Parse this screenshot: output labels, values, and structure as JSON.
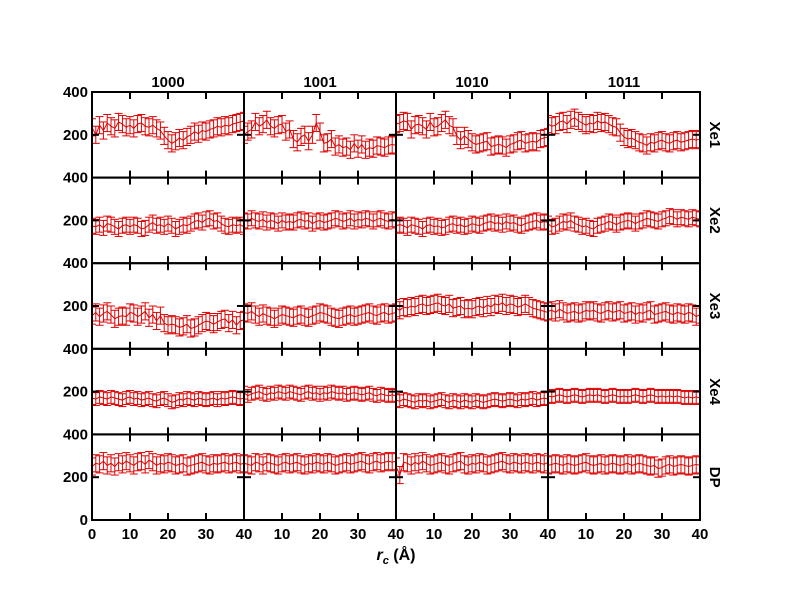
{
  "chart_data": {
    "type": "line",
    "layout": "4x5 grid of panels with shared axes",
    "x_axis": {
      "ticks": [
        0,
        10,
        20,
        30,
        40
      ],
      "tick_labels": [
        "0",
        "10",
        "20",
        "30",
        "40"
      ],
      "range": [
        0,
        40
      ],
      "label_main": "r",
      "label_sub": "c",
      "label_unit": " (Å)"
    },
    "y_axis": {
      "ticks": [
        0,
        200,
        400
      ],
      "tick_labels": [
        "0",
        "200",
        "400"
      ],
      "range": [
        0,
        400
      ]
    },
    "columns": [
      "1000",
      "1001",
      "1010",
      "1011"
    ],
    "rows": [
      "Xe1",
      "Xe2",
      "Xe3",
      "Xe4",
      "DP"
    ],
    "x": [
      0,
      1,
      2,
      3,
      4,
      5,
      6,
      7,
      8,
      9,
      10,
      11,
      12,
      13,
      14,
      15,
      16,
      17,
      18,
      19,
      20,
      21,
      22,
      23,
      24,
      25,
      26,
      27,
      28,
      29,
      30,
      31,
      32,
      33,
      34,
      35,
      36,
      37,
      38,
      39,
      40
    ],
    "error_bar_halfwidth": [
      [
        40,
        40,
        40,
        40
      ],
      [
        35,
        35,
        35,
        35
      ],
      [
        40,
        40,
        40,
        40
      ],
      [
        30,
        30,
        30,
        30
      ],
      [
        40,
        40,
        40,
        40
      ]
    ],
    "series_color": "#e00000",
    "panels": [
      [
        [
          235,
          200,
          245,
          220,
          255,
          240,
          230,
          260,
          250,
          235,
          245,
          230,
          250,
          255,
          240,
          235,
          245,
          230,
          220,
          195,
          175,
          160,
          170,
          185,
          175,
          190,
          200,
          215,
          205,
          220,
          215,
          225,
          230,
          240,
          235,
          245,
          240,
          250,
          255,
          260,
          265
        ],
        [
          200,
          215,
          225,
          260,
          240,
          250,
          270,
          240,
          230,
          245,
          250,
          215,
          225,
          180,
          165,
          190,
          200,
          170,
          200,
          255,
          215,
          160,
          165,
          180,
          145,
          155,
          140,
          145,
          130,
          160,
          135,
          155,
          130,
          140,
          135,
          150,
          145,
          140,
          150,
          155,
          150
        ],
        [
          250,
          255,
          265,
          260,
          225,
          245,
          250,
          240,
          225,
          260,
          235,
          240,
          255,
          270,
          245,
          235,
          195,
          175,
          195,
          180,
          165,
          155,
          160,
          165,
          170,
          145,
          150,
          155,
          150,
          140,
          155,
          160,
          170,
          175,
          160,
          165,
          170,
          165,
          180,
          185,
          190
        ],
        [
          250,
          240,
          245,
          260,
          265,
          250,
          270,
          280,
          265,
          255,
          245,
          255,
          250,
          265,
          255,
          260,
          250,
          240,
          235,
          210,
          190,
          180,
          185,
          175,
          165,
          160,
          150,
          165,
          160,
          170,
          175,
          165,
          160,
          170,
          175,
          165,
          170,
          175,
          180,
          175,
          180
        ]
      ],
      [
        [
          175,
          170,
          180,
          165,
          185,
          180,
          170,
          160,
          175,
          180,
          170,
          180,
          175,
          160,
          165,
          180,
          190,
          175,
          180,
          170,
          185,
          175,
          160,
          170,
          180,
          175,
          185,
          195,
          200,
          190,
          205,
          210,
          195,
          200,
          185,
          175,
          170,
          180,
          175,
          180,
          170
        ],
        [
          200,
          195,
          210,
          200,
          195,
          205,
          190,
          200,
          195,
          185,
          200,
          190,
          195,
          190,
          200,
          205,
          195,
          200,
          185,
          195,
          200,
          190,
          195,
          200,
          210,
          205,
          195,
          200,
          210,
          195,
          205,
          200,
          210,
          205,
          195,
          205,
          210,
          200,
          195,
          205,
          200
        ],
        [
          175,
          180,
          175,
          165,
          180,
          175,
          170,
          160,
          175,
          180,
          170,
          175,
          165,
          170,
          180,
          185,
          175,
          180,
          170,
          175,
          185,
          180,
          175,
          185,
          190,
          195,
          185,
          190,
          180,
          195,
          185,
          190,
          180,
          175,
          185,
          190,
          195,
          200,
          190,
          195,
          190
        ],
        [
          185,
          170,
          175,
          185,
          195,
          190,
          200,
          185,
          180,
          170,
          175,
          165,
          160,
          175,
          180,
          185,
          195,
          190,
          180,
          190,
          195,
          200,
          195,
          185,
          195,
          200,
          210,
          205,
          200,
          195,
          205,
          210,
          220,
          215,
          205,
          215,
          210,
          205,
          215,
          210,
          205
        ]
      ],
      [
        [
          155,
          170,
          150,
          165,
          175,
          160,
          140,
          150,
          155,
          150,
          170,
          165,
          150,
          160,
          175,
          145,
          160,
          130,
          155,
          120,
          110,
          115,
          110,
          100,
          105,
          115,
          95,
          100,
          110,
          120,
          130,
          125,
          115,
          125,
          135,
          140,
          120,
          135,
          110,
          130,
          135
        ],
        [
          170,
          165,
          175,
          160,
          150,
          165,
          155,
          150,
          140,
          150,
          160,
          155,
          150,
          145,
          155,
          160,
          150,
          145,
          155,
          160,
          170,
          165,
          160,
          150,
          145,
          140,
          150,
          155,
          160,
          150,
          155,
          160,
          165,
          170,
          160,
          155,
          165,
          170,
          160,
          165,
          170
        ],
        [
          190,
          180,
          195,
          190,
          200,
          195,
          205,
          210,
          200,
          205,
          210,
          215,
          205,
          200,
          210,
          190,
          195,
          200,
          185,
          190,
          185,
          195,
          200,
          190,
          205,
          195,
          210,
          205,
          215,
          200,
          210,
          205,
          195,
          200,
          210,
          200,
          190,
          185,
          180,
          175,
          170
        ],
        [
          175,
          180,
          170,
          185,
          175,
          165,
          170,
          175,
          165,
          170,
          180,
          175,
          180,
          170,
          165,
          175,
          180,
          170,
          175,
          180,
          165,
          170,
          175,
          160,
          170,
          165,
          175,
          180,
          160,
          165,
          170,
          175,
          165,
          160,
          170,
          165,
          160,
          170,
          165,
          150,
          160
        ]
      ],
      [
        [
          170,
          165,
          175,
          170,
          165,
          175,
          170,
          165,
          160,
          170,
          175,
          165,
          170,
          160,
          165,
          170,
          160,
          155,
          165,
          170,
          160,
          150,
          155,
          165,
          160,
          170,
          165,
          160,
          170,
          165,
          160,
          165,
          170,
          160,
          170,
          165,
          170,
          175,
          170,
          165,
          170
        ],
        [
          195,
          180,
          190,
          195,
          200,
          190,
          185,
          195,
          190,
          200,
          195,
          190,
          200,
          195,
          190,
          185,
          195,
          200,
          190,
          195,
          185,
          195,
          190,
          200,
          195,
          190,
          195,
          185,
          190,
          195,
          190,
          185,
          190,
          195,
          185,
          180,
          190,
          185,
          180,
          185,
          180
        ],
        [
          160,
          155,
          165,
          160,
          155,
          150,
          160,
          155,
          160,
          150,
          155,
          160,
          165,
          155,
          150,
          160,
          155,
          150,
          160,
          155,
          150,
          160,
          155,
          150,
          155,
          160,
          165,
          160,
          155,
          160,
          165,
          160,
          155,
          165,
          160,
          165,
          170,
          160,
          165,
          170,
          165
        ],
        [
          180,
          175,
          180,
          185,
          180,
          175,
          180,
          185,
          180,
          175,
          180,
          185,
          180,
          185,
          180,
          175,
          180,
          185,
          180,
          175,
          180,
          175,
          180,
          185,
          180,
          175,
          180,
          185,
          180,
          175,
          180,
          175,
          180,
          175,
          180,
          175,
          170,
          175,
          170,
          175,
          170
        ]
      ],
      [
        [
          250,
          265,
          260,
          275,
          255,
          265,
          250,
          270,
          260,
          275,
          265,
          255,
          270,
          275,
          260,
          280,
          270,
          255,
          265,
          260,
          270,
          265,
          255,
          260,
          265,
          250,
          255,
          260,
          265,
          270,
          260,
          255,
          265,
          260,
          265,
          270,
          260,
          265,
          270,
          260,
          265
        ],
        [
          265,
          260,
          255,
          270,
          265,
          255,
          270,
          265,
          260,
          255,
          265,
          270,
          260,
          265,
          270,
          260,
          255,
          265,
          260,
          270,
          265,
          260,
          270,
          265,
          255,
          260,
          265,
          270,
          260,
          265,
          270,
          275,
          265,
          260,
          270,
          275,
          265,
          270,
          275,
          270,
          275
        ],
        [
          250,
          210,
          270,
          265,
          255,
          270,
          260,
          275,
          265,
          255,
          260,
          265,
          270,
          260,
          255,
          265,
          270,
          275,
          260,
          255,
          265,
          260,
          270,
          265,
          255,
          260,
          265,
          270,
          275,
          265,
          260,
          270,
          265,
          260,
          270,
          265,
          260,
          270,
          265,
          260,
          270
        ],
        [
          255,
          260,
          265,
          260,
          255,
          265,
          260,
          255,
          260,
          265,
          270,
          260,
          255,
          260,
          265,
          255,
          260,
          265,
          260,
          255,
          260,
          265,
          255,
          260,
          265,
          260,
          255,
          250,
          255,
          240,
          245,
          255,
          260,
          250,
          255,
          260,
          255,
          250,
          255,
          260,
          255
        ]
      ]
    ]
  }
}
